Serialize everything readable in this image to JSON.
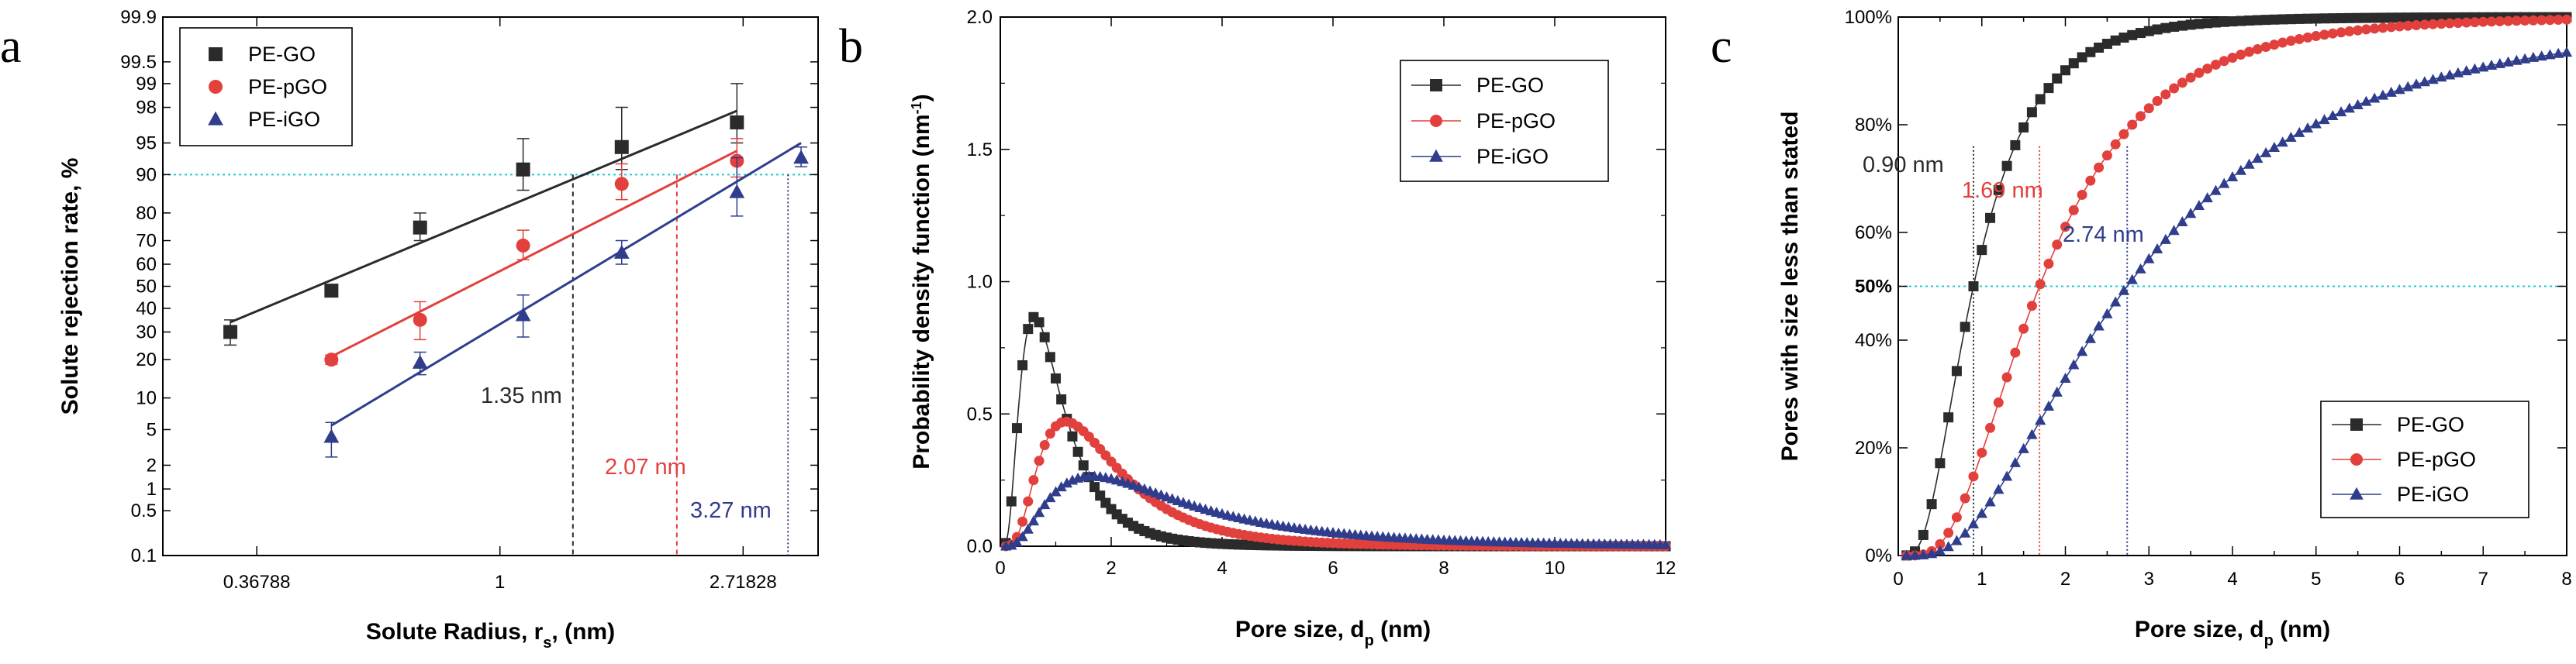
{
  "colors": {
    "go": "#2b2b2b",
    "pgo": "#e2403c",
    "igo": "#2f3d8c",
    "guide": "#1fc9d6"
  },
  "chart_data": [
    {
      "panel_label": "a",
      "type": "scatter",
      "xlabel": "Solute Radius, r",
      "xlabel_sub": "s",
      "xlabel_suffix": ", (nm)",
      "ylabel": "Solute rejection rate, %",
      "x_scale": "log",
      "xlim": [
        0.25,
        3.7
      ],
      "x_ticks": [
        0.36788,
        1,
        2.71828
      ],
      "x_tick_labels": [
        "0.36788",
        "1",
        "2.71828"
      ],
      "y_scale": "probit",
      "ylim": [
        0.1,
        99.9
      ],
      "y_ticks": [
        0.1,
        0.5,
        1,
        2,
        5,
        10,
        20,
        30,
        40,
        50,
        60,
        70,
        80,
        90,
        95,
        98,
        99,
        99.5,
        99.9
      ],
      "y_tick_labels": [
        "0.1",
        "0.5",
        "1",
        "2",
        "5",
        "10",
        "20",
        "30",
        "40",
        "50",
        "60",
        "70",
        "80",
        "90",
        "95",
        "98",
        "99",
        "99.5",
        "99.9"
      ],
      "hline": 90,
      "series": [
        {
          "name": "PE-GO",
          "marker": "square",
          "points": [
            {
              "x": 0.33,
              "y": 30,
              "err": 5
            },
            {
              "x": 0.5,
              "y": 48,
              "err": 2
            },
            {
              "x": 0.72,
              "y": 75,
              "err": 5
            },
            {
              "x": 1.1,
              "y": 91,
              "err": 4.5
            },
            {
              "x": 1.65,
              "y": 94.5,
              "err": 3.5
            },
            {
              "x": 2.65,
              "y": 97,
              "err": 2
            }
          ],
          "fit": {
            "x1": 0.33,
            "y1": 34,
            "x2": 2.65,
            "y2": 97.8
          },
          "cutoff": {
            "x": 1.35,
            "label": "1.35 nm"
          }
        },
        {
          "name": "PE-pGO",
          "marker": "circle",
          "points": [
            {
              "x": 0.5,
              "y": 20,
              "err": 1.5
            },
            {
              "x": 0.72,
              "y": 35,
              "err": 8
            },
            {
              "x": 1.1,
              "y": 68,
              "err": 6
            },
            {
              "x": 1.65,
              "y": 88,
              "err": 4
            },
            {
              "x": 2.65,
              "y": 92.5,
              "err": 3
            }
          ],
          "fit": {
            "x1": 0.5,
            "y1": 21,
            "x2": 2.65,
            "y2": 94
          },
          "cutoff": {
            "x": 2.07,
            "label": "2.07 nm"
          }
        },
        {
          "name": "PE-iGO",
          "marker": "triangle",
          "points": [
            {
              "x": 0.5,
              "y": 4.2,
              "err": 1.7
            },
            {
              "x": 0.72,
              "y": 19,
              "err": 3.5
            },
            {
              "x": 1.1,
              "y": 37,
              "err": 9
            },
            {
              "x": 1.65,
              "y": 65,
              "err": 5
            },
            {
              "x": 2.65,
              "y": 86,
              "err": 7
            },
            {
              "x": 3.45,
              "y": 93,
              "err": 1.5
            }
          ],
          "fit": {
            "x1": 0.5,
            "y1": 5.5,
            "x2": 3.45,
            "y2": 95
          },
          "cutoff": {
            "x": 3.27,
            "label": "3.27 nm"
          }
        }
      ]
    },
    {
      "panel_label": "b",
      "type": "line",
      "xlabel": "Pore size, d",
      "xlabel_sub": "p",
      "xlabel_suffix": " (nm)",
      "ylabel": "Probability density function (nm",
      "ylabel_sup": "-1",
      "ylabel_suffix": ")",
      "xlim": [
        0,
        12
      ],
      "ylim": [
        0,
        2.0
      ],
      "x_ticks": [
        0,
        2,
        4,
        6,
        8,
        10,
        12
      ],
      "y_ticks": [
        0,
        0.5,
        1.0,
        1.5,
        2.0
      ],
      "y_tick_labels": [
        "0.0",
        "0.5",
        "1.0",
        "1.5",
        "2.0"
      ],
      "series": [
        {
          "name": "PE-GO",
          "marker": "square",
          "distribution": "lognormal",
          "median_nm": 0.9,
          "sigma": 0.62
        },
        {
          "name": "PE-pGO",
          "marker": "circle",
          "distribution": "lognormal",
          "median_nm": 1.69,
          "sigma": 0.6
        },
        {
          "name": "PE-iGO",
          "marker": "triangle",
          "distribution": "lognormal",
          "median_nm": 2.74,
          "sigma": 0.71
        }
      ]
    },
    {
      "panel_label": "c",
      "type": "line",
      "xlabel": "Pore size, d",
      "xlabel_sub": "p",
      "xlabel_suffix": " (nm)",
      "ylabel": "Pores with size less than stated",
      "xlim": [
        0,
        8
      ],
      "ylim": [
        0,
        100
      ],
      "x_ticks": [
        0,
        0.5,
        1,
        1.5,
        2,
        2.5,
        3,
        3.5,
        4,
        4.5,
        5,
        5.5,
        6,
        6.5,
        7,
        7.5,
        8
      ],
      "x_tick_labels": [
        "0",
        "",
        "1",
        "",
        "2",
        "",
        "3",
        "",
        "4",
        "",
        "5",
        "",
        "6",
        "",
        "7",
        "",
        "8"
      ],
      "y_ticks": [
        0,
        20,
        40,
        50,
        60,
        80,
        100
      ],
      "y_tick_labels": [
        "0%",
        "20%",
        "40%",
        "50%",
        "60%",
        "80%",
        "100%"
      ],
      "hline": 50,
      "series": [
        {
          "name": "PE-GO",
          "marker": "square",
          "distribution": "lognormal_cdf",
          "median_nm": 0.9,
          "sigma": 0.62,
          "label": "0.90 nm"
        },
        {
          "name": "PE-pGO",
          "marker": "circle",
          "distribution": "lognormal_cdf",
          "median_nm": 1.69,
          "sigma": 0.6,
          "label": "1.69 nm"
        },
        {
          "name": "PE-iGO",
          "marker": "triangle",
          "distribution": "lognormal_cdf",
          "median_nm": 2.74,
          "sigma": 0.71,
          "label": "2.74 nm"
        }
      ]
    }
  ]
}
